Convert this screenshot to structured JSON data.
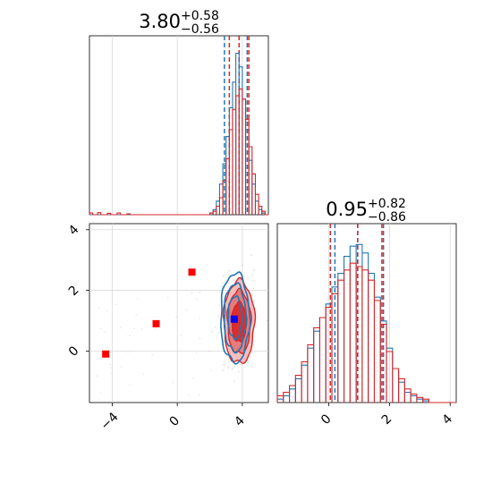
{
  "chart_data": [
    {
      "type": "histogram",
      "panel": "marginal-param-1",
      "title": {
        "value": "3.80",
        "plus": "+0.58",
        "minus": "−0.56"
      },
      "xlim": [
        -5.4,
        5.6
      ],
      "grid": true,
      "series": [
        {
          "name": "",
          "color": "#1f77b4",
          "bins": [
            [
              -5.3,
              0
            ],
            [
              2.1,
              0.01
            ],
            [
              2.3,
              0.03
            ],
            [
              2.5,
              0.08
            ],
            [
              2.7,
              0.18
            ],
            [
              2.9,
              0.3
            ],
            [
              3.1,
              0.46
            ],
            [
              3.3,
              0.63
            ],
            [
              3.5,
              0.78
            ],
            [
              3.7,
              0.95
            ],
            [
              3.9,
              0.87
            ],
            [
              4.1,
              0.68
            ],
            [
              4.3,
              0.5
            ],
            [
              4.5,
              0.32
            ],
            [
              4.7,
              0.18
            ],
            [
              4.9,
              0.08
            ],
            [
              5.1,
              0.03
            ],
            [
              5.3,
              0.01
            ]
          ],
          "quantiles": [
            2.9,
            3.8,
            4.3
          ]
        },
        {
          "name": "",
          "color": "#d62728",
          "bins": [
            [
              -5.3,
              0.01
            ],
            [
              -4.8,
              0.012
            ],
            [
              -4.2,
              0.008
            ],
            [
              -3.6,
              0.01
            ],
            [
              -3.0,
              0.005
            ],
            [
              2.1,
              0.01
            ],
            [
              2.3,
              0.02
            ],
            [
              2.5,
              0.05
            ],
            [
              2.7,
              0.1
            ],
            [
              2.9,
              0.2
            ],
            [
              3.1,
              0.33
            ],
            [
              3.3,
              0.5
            ],
            [
              3.5,
              0.62
            ],
            [
              3.7,
              0.7
            ],
            [
              3.9,
              0.74
            ],
            [
              4.1,
              0.68
            ],
            [
              4.3,
              0.56
            ],
            [
              4.5,
              0.4
            ],
            [
              4.7,
              0.24
            ],
            [
              4.9,
              0.12
            ],
            [
              5.1,
              0.05
            ],
            [
              5.3,
              0.02
            ]
          ],
          "quantiles": [
            3.2,
            3.8,
            4.4
          ]
        }
      ]
    },
    {
      "type": "histogram",
      "panel": "marginal-param-2",
      "title": {
        "value": "0.95",
        "plus": "+0.82",
        "minus": "−0.86"
      },
      "xlim": [
        -1.7,
        4.2
      ],
      "xticks": [
        "0",
        "2",
        "4"
      ],
      "grid": true,
      "series": [
        {
          "name": "",
          "color": "#1f77b4",
          "bins": [
            [
              -1.6,
              0.02
            ],
            [
              -1.4,
              0.04
            ],
            [
              -1.2,
              0.08
            ],
            [
              -1.0,
              0.14
            ],
            [
              -0.8,
              0.22
            ],
            [
              -0.6,
              0.32
            ],
            [
              -0.4,
              0.42
            ],
            [
              -0.2,
              0.5
            ],
            [
              0.0,
              0.58
            ],
            [
              0.2,
              0.68
            ],
            [
              0.4,
              0.76
            ],
            [
              0.6,
              0.86
            ],
            [
              0.8,
              0.92
            ],
            [
              1.0,
              0.93
            ],
            [
              1.2,
              0.88
            ],
            [
              1.4,
              0.76
            ],
            [
              1.6,
              0.62
            ],
            [
              1.8,
              0.48
            ],
            [
              2.0,
              0.32
            ],
            [
              2.2,
              0.2
            ],
            [
              2.4,
              0.12
            ],
            [
              2.6,
              0.06
            ],
            [
              2.8,
              0.04
            ],
            [
              3.0,
              0.02
            ],
            [
              3.2,
              0.01
            ]
          ],
          "quantiles": [
            0.2,
            0.95,
            1.8
          ]
        },
        {
          "name": "",
          "color": "#d62728",
          "bins": [
            [
              -1.6,
              0.04
            ],
            [
              -1.4,
              0.06
            ],
            [
              -1.2,
              0.1
            ],
            [
              -1.0,
              0.16
            ],
            [
              -0.8,
              0.24
            ],
            [
              -0.6,
              0.34
            ],
            [
              -0.4,
              0.44
            ],
            [
              -0.2,
              0.5
            ],
            [
              0.0,
              0.56
            ],
            [
              0.2,
              0.64
            ],
            [
              0.4,
              0.72
            ],
            [
              0.6,
              0.78
            ],
            [
              0.8,
              0.82
            ],
            [
              1.0,
              0.8
            ],
            [
              1.2,
              0.78
            ],
            [
              1.4,
              0.72
            ],
            [
              1.6,
              0.6
            ],
            [
              1.8,
              0.46
            ],
            [
              2.0,
              0.3
            ],
            [
              2.2,
              0.2
            ],
            [
              2.4,
              0.14
            ],
            [
              2.6,
              0.08
            ],
            [
              2.8,
              0.05
            ],
            [
              3.0,
              0.03
            ],
            [
              3.2,
              0.02
            ]
          ],
          "quantiles": [
            0.05,
            0.95,
            1.75
          ]
        }
      ]
    },
    {
      "type": "contour",
      "panel": "joint-param-1-param-2",
      "xlim": [
        -5.4,
        5.6
      ],
      "ylim": [
        -1.7,
        4.2
      ],
      "xticks": [
        "−4",
        "0",
        "4"
      ],
      "yticks": [
        "0",
        "2",
        "4"
      ],
      "grid": true,
      "contours": [
        {
          "series": "red",
          "color": "#d62728",
          "center": [
            3.8,
            0.95
          ],
          "sigma": [
            0.45,
            0.65
          ],
          "levels": [
            1.0,
            1.6,
            2.1
          ]
        },
        {
          "series": "blue",
          "color": "#1f77b4",
          "center": [
            3.55,
            1.1
          ],
          "sigma": [
            0.42,
            0.7
          ],
          "levels": [
            1.0,
            1.6,
            2.1
          ]
        }
      ],
      "markers": [
        {
          "color": "#ff0000",
          "x": -4.4,
          "y": -0.1
        },
        {
          "color": "#ff0000",
          "x": -1.3,
          "y": 0.9
        },
        {
          "color": "#ff0000",
          "x": 0.9,
          "y": 2.6
        },
        {
          "color": "#0000ff",
          "x": 3.5,
          "y": 1.05
        }
      ]
    }
  ]
}
